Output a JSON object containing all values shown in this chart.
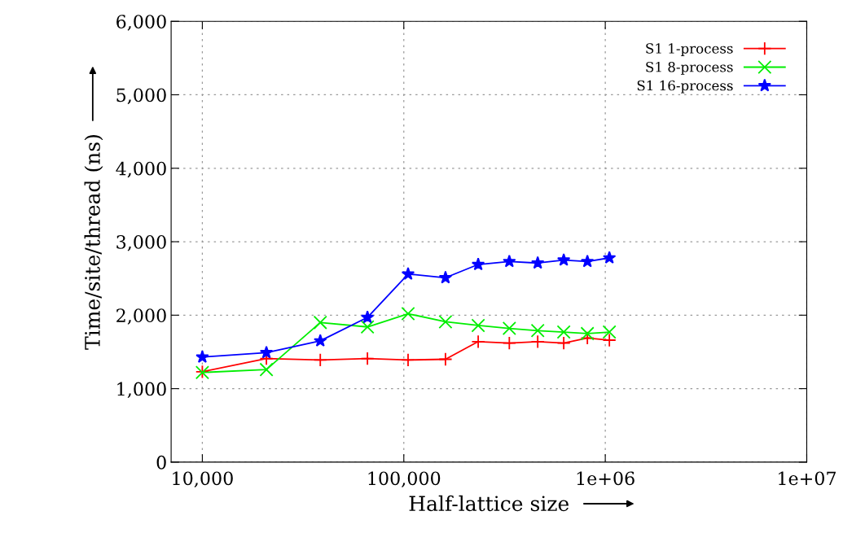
{
  "chart_data": {
    "type": "line",
    "xlabel": "Half-lattice size",
    "ylabel": "Time/site/thread (ns)",
    "log": "x",
    "x": [
      10000,
      20800,
      38500,
      66000,
      105000,
      161000,
      234000,
      334000,
      462000,
      622000,
      815000,
      1048000
    ],
    "series": [
      {
        "name": "S1 1-process",
        "color": "#ff0000",
        "marker": "cross",
        "values": [
          1230,
          1410,
          1390,
          1410,
          1390,
          1400,
          1640,
          1620,
          1640,
          1620,
          1690,
          1660
        ]
      },
      {
        "name": "S1 8-process",
        "color": "#00ee00",
        "marker": "x",
        "values": [
          1220,
          1260,
          1900,
          1840,
          2020,
          1910,
          1860,
          1820,
          1790,
          1770,
          1750,
          1770
        ]
      },
      {
        "name": "S1 16-process",
        "color": "#0000ff",
        "marker": "star",
        "values": [
          1430,
          1490,
          1650,
          1970,
          2560,
          2510,
          2690,
          2730,
          2710,
          2750,
          2730,
          2780
        ]
      }
    ],
    "xlim": [
      7000,
      10000000
    ],
    "xticks": [
      {
        "value": 10000,
        "label": "10,000"
      },
      {
        "value": 100000,
        "label": "100,000"
      },
      {
        "value": 1000000,
        "label": "1e+06"
      },
      {
        "value": 10000000,
        "label": "1e+07"
      }
    ],
    "ylim": [
      0,
      6000
    ],
    "yticks": [
      0,
      {
        "value": 1000,
        "label": "1,000"
      },
      {
        "value": 2000,
        "label": "2,000"
      },
      {
        "value": 3000,
        "label": "3,000"
      },
      {
        "value": 4000,
        "label": "4,000"
      },
      {
        "value": 5000,
        "label": "5,000"
      },
      {
        "value": 6000,
        "label": "6,000"
      }
    ],
    "grid": true,
    "legend": "top right",
    "line_style": "solid"
  }
}
